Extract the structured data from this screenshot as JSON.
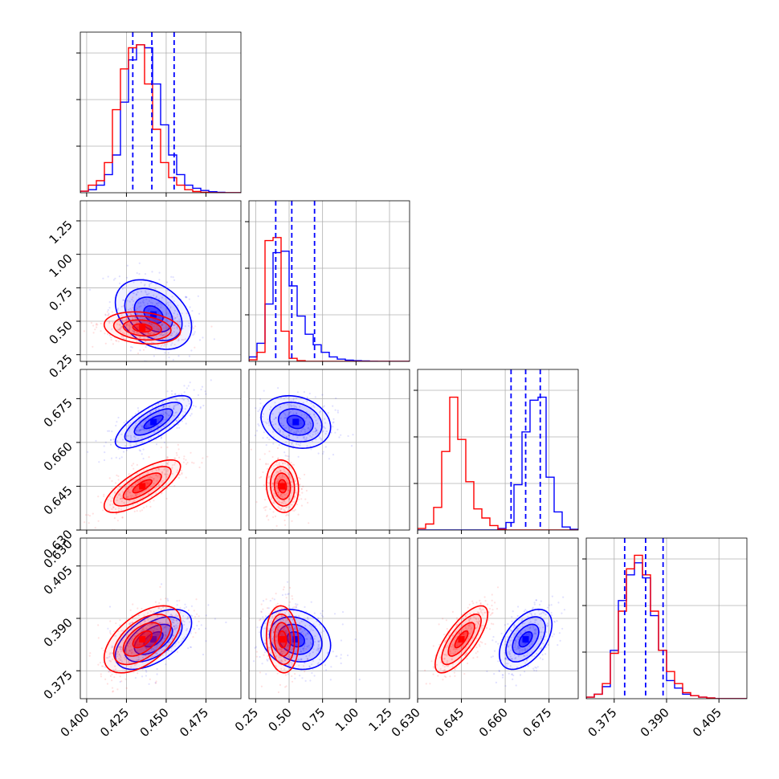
{
  "chart_data": {
    "type": "corner",
    "grid": true,
    "colors": {
      "series_a": "#0000ff",
      "series_b": "#ff0000"
    },
    "quantile_lines": {
      "color": "#0000ff",
      "style": "dashed",
      "series": "series_a"
    },
    "parameters": [
      {
        "ticks": [
          0.4,
          0.425,
          0.45,
          0.475
        ],
        "tick_labels": [
          "0.400",
          "0.425",
          "0.450",
          "0.475"
        ],
        "range": [
          0.396,
          0.497
        ],
        "quantiles": [
          0.429,
          0.441,
          0.455
        ]
      },
      {
        "ticks": [
          0.25,
          0.5,
          0.75,
          1.0,
          1.25
        ],
        "tick_labels": [
          "0.25",
          "0.50",
          "0.75",
          "1.00",
          "1.25"
        ],
        "range": [
          0.2,
          1.4
        ],
        "quantiles": [
          0.4,
          0.52,
          0.69
        ]
      },
      {
        "ticks": [
          0.63,
          0.645,
          0.66,
          0.675
        ],
        "tick_labels": [
          "0.630",
          "0.645",
          "0.660",
          "0.675"
        ],
        "range": [
          0.63,
          0.685
        ],
        "quantiles": [
          0.662,
          0.667,
          0.672
        ]
      },
      {
        "ticks": [
          0.375,
          0.39,
          0.405
        ],
        "tick_labels": [
          "0.375",
          "0.390",
          "0.405"
        ],
        "range": [
          0.367,
          0.413
        ],
        "quantiles": [
          0.378,
          0.384,
          0.389
        ]
      }
    ],
    "extra_labels": {
      "row2_y_top": "0.630"
    },
    "series": [
      {
        "id": "series_a",
        "color": "#0000ff",
        "means": [
          0.442,
          0.55,
          0.667,
          0.384
        ],
        "sigmas": [
          0.012,
          0.13,
          0.0045,
          0.0043
        ],
        "corr": [
          [
            1,
            -0.35,
            0.75,
            0.55
          ],
          [
            -0.35,
            1,
            -0.2,
            -0.2
          ],
          [
            0.75,
            -0.2,
            1,
            0.5
          ],
          [
            0.55,
            -0.2,
            0.5,
            1
          ]
        ],
        "hist": [
          {
            "edges_from": 0.396,
            "edges_to": 0.497,
            "counts": [
              0.01,
              0.02,
              0.05,
              0.12,
              0.25,
              0.6,
              0.88,
              0.98,
              0.96,
              0.72,
              0.45,
              0.25,
              0.12,
              0.05,
              0.03,
              0.015,
              0.007,
              0.003,
              0,
              0
            ]
          },
          {
            "edges_from": 0.2,
            "edges_to": 1.4,
            "counts": [
              0.03,
              0.12,
              0.38,
              0.72,
              0.73,
              0.5,
              0.3,
              0.18,
              0.11,
              0.06,
              0.03,
              0.015,
              0.008,
              0.005,
              0.003,
              0.001,
              0,
              0,
              0,
              0
            ]
          },
          {
            "edges_from": 0.63,
            "edges_to": 0.685,
            "counts": [
              0,
              0,
              0,
              0,
              0,
              0,
              0,
              0,
              0,
              0,
              0.01,
              0.05,
              0.3,
              0.65,
              0.86,
              0.88,
              0.35,
              0.12,
              0.02,
              0.005
            ]
          },
          {
            "edges_from": 0.367,
            "edges_to": 0.413,
            "counts": [
              0.01,
              0.03,
              0.08,
              0.32,
              0.65,
              0.82,
              0.9,
              0.8,
              0.55,
              0.32,
              0.12,
              0.07,
              0.03,
              0.02,
              0.01,
              0.005,
              0,
              0,
              0,
              0
            ]
          }
        ]
      },
      {
        "id": "series_b",
        "color": "#ff0000",
        "means": [
          0.435,
          0.45,
          0.645,
          0.384
        ],
        "sigmas": [
          0.012,
          0.06,
          0.0045,
          0.0048
        ],
        "corr": [
          [
            1,
            -0.2,
            0.75,
            0.55
          ],
          [
            -0.2,
            1,
            -0.1,
            -0.1
          ],
          [
            0.75,
            -0.1,
            1,
            0.75
          ],
          [
            0.55,
            -0.1,
            0.75,
            1
          ]
        ],
        "hist": [
          {
            "edges_from": 0.396,
            "edges_to": 0.497,
            "counts": [
              0.01,
              0.05,
              0.08,
              0.2,
              0.55,
              0.82,
              0.96,
              0.98,
              0.72,
              0.42,
              0.2,
              0.1,
              0.05,
              0.02,
              0.008,
              0.003,
              0,
              0,
              0,
              0
            ]
          },
          {
            "edges_from": 0.2,
            "edges_to": 1.4,
            "counts": [
              0.01,
              0.06,
              0.8,
              0.82,
              0.2,
              0.02,
              0.005,
              0,
              0,
              0,
              0,
              0,
              0,
              0,
              0,
              0,
              0,
              0,
              0,
              0
            ]
          },
          {
            "edges_from": 0.63,
            "edges_to": 0.685,
            "counts": [
              0.01,
              0.04,
              0.15,
              0.52,
              0.88,
              0.6,
              0.32,
              0.14,
              0.08,
              0.03,
              0.005,
              0,
              0,
              0,
              0,
              0,
              0,
              0,
              0,
              0
            ]
          },
          {
            "edges_from": 0.367,
            "edges_to": 0.413,
            "counts": [
              0.01,
              0.03,
              0.1,
              0.3,
              0.58,
              0.86,
              0.95,
              0.82,
              0.58,
              0.32,
              0.18,
              0.1,
              0.04,
              0.02,
              0.01,
              0.005,
              0,
              0,
              0,
              0
            ]
          }
        ]
      }
    ]
  }
}
